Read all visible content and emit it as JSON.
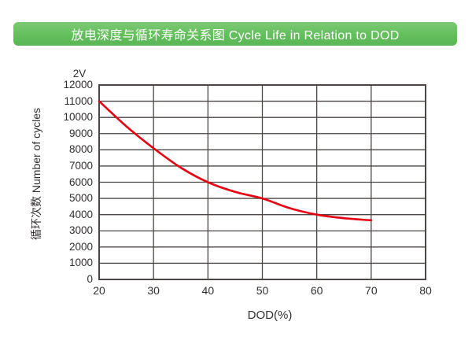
{
  "banner": {
    "title": "放电深度与循环寿命关系图 Cycle Life in Relation to DOD",
    "bg": "#63bf5c",
    "bg_light": "#7cc973",
    "bg_dark": "#5ab655",
    "text_color": "#ffffff"
  },
  "chart_data": {
    "type": "line",
    "title": "放电深度与循环寿命关系图 Cycle Life in Relation to DOD",
    "series_label": "2V",
    "xlabel": "DOD(%)",
    "ylabel": "循环次数 Number of cycles",
    "x": [
      20,
      25,
      30,
      35,
      40,
      45,
      50,
      55,
      60,
      65,
      70
    ],
    "y": [
      11000,
      9450,
      8100,
      6900,
      6000,
      5400,
      5000,
      4400,
      4000,
      3780,
      3650
    ],
    "xlim": [
      20,
      80
    ],
    "ylim": [
      0,
      12000
    ],
    "x_ticks": [
      20,
      30,
      40,
      50,
      60,
      70,
      80
    ],
    "y_ticks": [
      0,
      1000,
      2000,
      3000,
      4000,
      5000,
      6000,
      7000,
      8000,
      9000,
      10000,
      11000,
      12000
    ],
    "grid": true,
    "legend_position": "top-left",
    "line_color": "#e60012",
    "grid_color": "#4c4644",
    "axis_color": "#4c4644",
    "tick_color": "#332f2e"
  }
}
